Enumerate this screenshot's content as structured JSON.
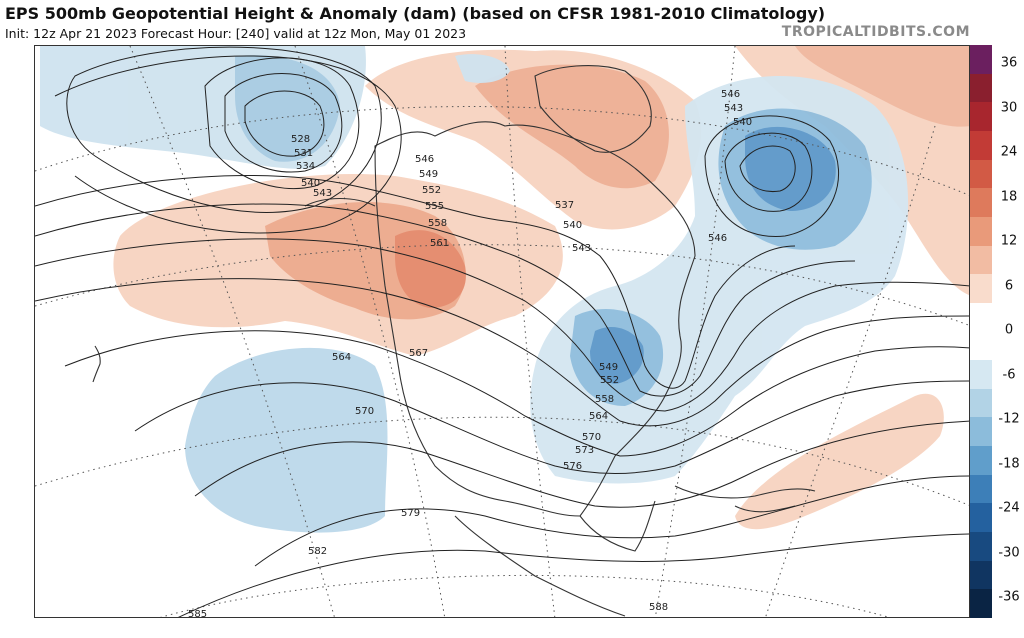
{
  "header": {
    "title": "EPS 500mb Geopotential Height & Anomaly (dam) (based on CFSR 1981-2010 Climatology)",
    "subtitle": "Init: 12z Apr 21 2023   Forecast Hour: [240]   valid at 12z Mon, May 01 2023",
    "brand": "TROPICALTIDBITS.COM"
  },
  "colorbar": {
    "ticks": [
      {
        "label": "36"
      },
      {
        "label": "30"
      },
      {
        "label": "24"
      },
      {
        "label": "18"
      },
      {
        "label": "12"
      },
      {
        "label": "6"
      },
      {
        "label": "0"
      },
      {
        "label": "-6"
      },
      {
        "label": "-12"
      },
      {
        "label": "-18"
      },
      {
        "label": "-24"
      },
      {
        "label": "-30"
      },
      {
        "label": "-36"
      }
    ],
    "colors": [
      "#6b1f5f",
      "#8a1f2e",
      "#a8262e",
      "#c23b36",
      "#d25a45",
      "#de7a5c",
      "#e99a7a",
      "#f2bca3",
      "#f9dccc",
      "#ffffff",
      "#ffffff",
      "#d6e8f2",
      "#b2d3e6",
      "#8cbcdb",
      "#609ecb",
      "#3d7fb8",
      "#24619f",
      "#184a80",
      "#103561",
      "#0a2444"
    ]
  },
  "contours": {
    "labels": [
      "528",
      "531",
      "534",
      "540",
      "543",
      "546",
      "549",
      "552",
      "555",
      "558",
      "561",
      "537",
      "540",
      "543",
      "546",
      "543",
      "540",
      "546",
      "564",
      "567",
      "570",
      "549",
      "552",
      "558",
      "564",
      "570",
      "573",
      "576",
      "579",
      "582",
      "585",
      "588"
    ]
  },
  "colors": {
    "warm_anomaly": "#f2bca3",
    "cold_anomaly": "#8cbcdb",
    "contour": "#222222",
    "land": "#333333"
  }
}
